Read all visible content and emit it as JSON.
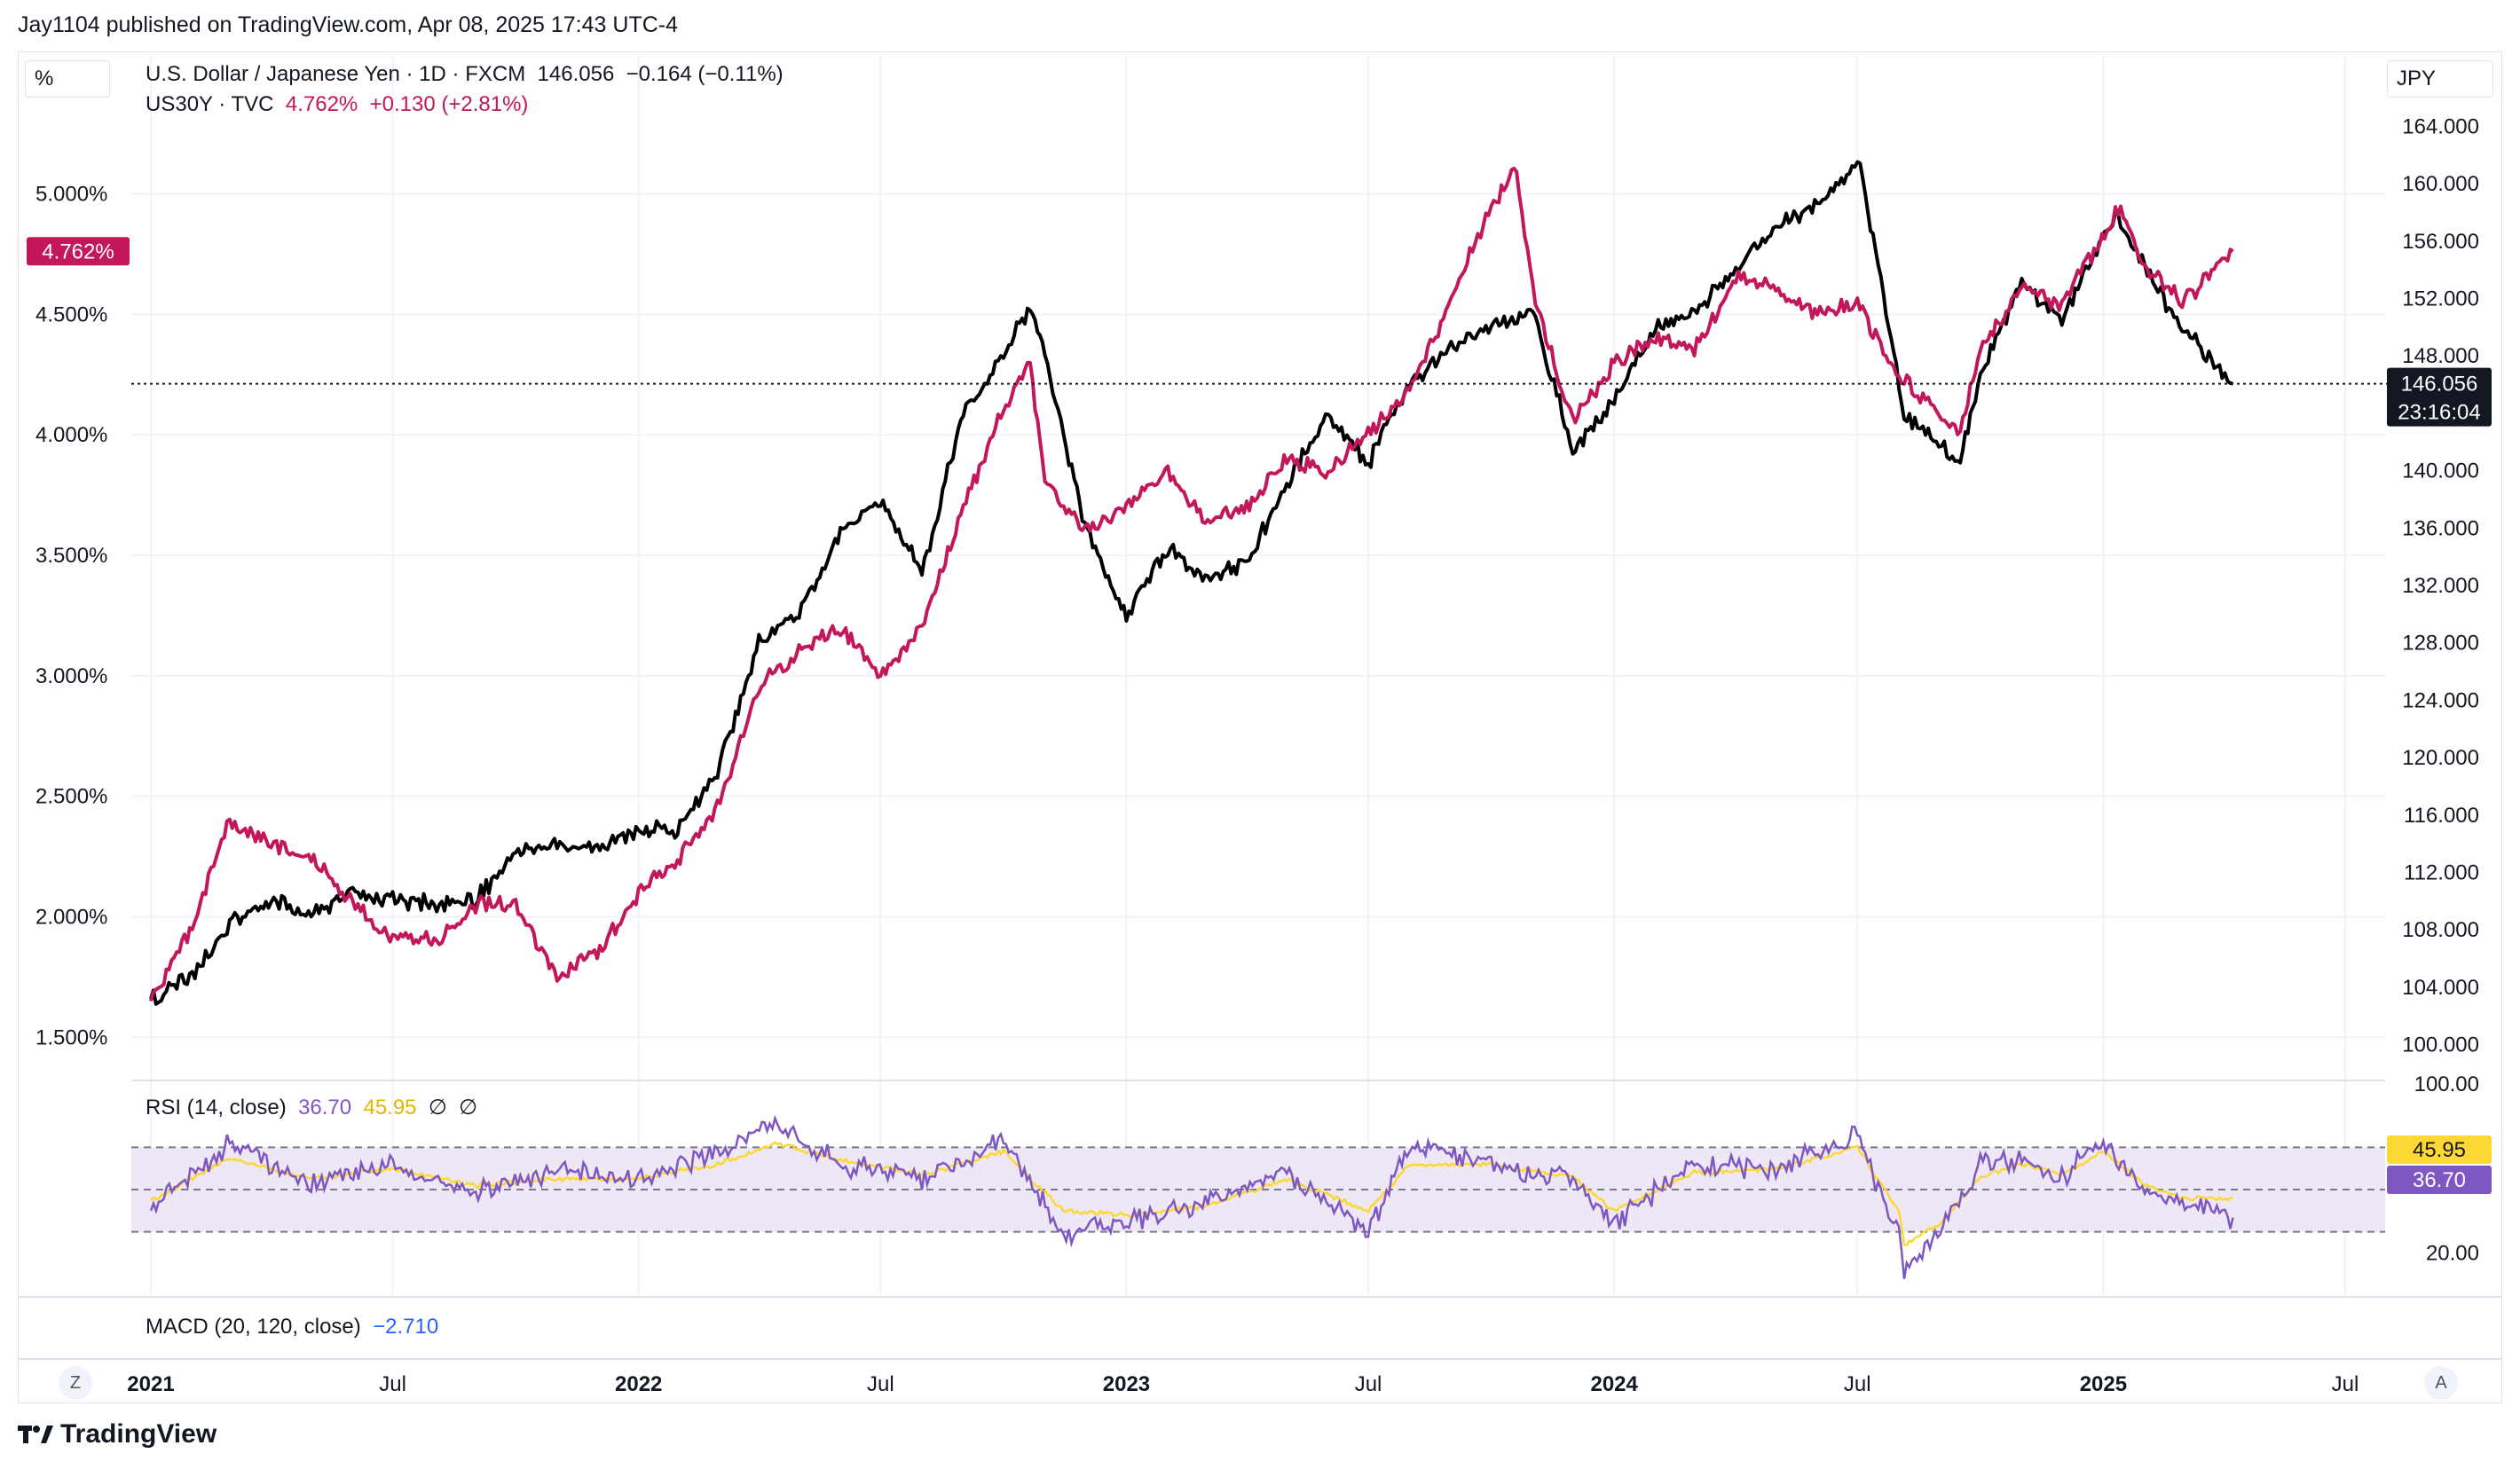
{
  "header": {
    "published": "Jay1104 published on TradingView.com, Apr 08, 2025 17:43 UTC-4"
  },
  "legend": {
    "main_symbol": "U.S. Dollar / Japanese Yen · 1D · FXCM",
    "main_value": "146.056",
    "main_change": "−0.164 (−0.11%)",
    "compare_symbol": "US30Y · TVC",
    "compare_value": "4.762%",
    "compare_change": "+0.130 (+2.81%)"
  },
  "axis_units": {
    "left": "%",
    "right": "JPY"
  },
  "price_labels": {
    "left_current": "4.762%",
    "right_current": "146.056",
    "right_countdown": "23:16:04",
    "rsi_ma": "45.95",
    "rsi_value": "36.70"
  },
  "indicators": {
    "rsi_title": "RSI (14, close)",
    "rsi_value": "36.70",
    "rsi_ma": "45.95",
    "rsi_extra1": "∅",
    "rsi_extra2": "∅",
    "macd_title": "MACD (20, 120, close)",
    "macd_value": "−2.710"
  },
  "controls": {
    "left_btn": "Z",
    "right_btn": "A"
  },
  "branding": {
    "logo_text": "TradingView"
  },
  "colors": {
    "usdjpy": "#000000",
    "us30y": "#c2185b",
    "rsi": "#7e57c2",
    "rsi_ma": "#fdd835",
    "rsi_band": "#ede7f6",
    "grid": "#f0f3fa",
    "macd_value": "#2962ff"
  },
  "chart_data": [
    {
      "type": "line",
      "x_ticks": [
        "2021",
        "Jul",
        "2022",
        "Jul",
        "2023",
        "Jul",
        "2024",
        "Jul",
        "2025",
        "Jul"
      ],
      "left_axis_ticks": [
        "5.000%",
        "4.500%",
        "4.000%",
        "3.500%",
        "3.000%",
        "2.500%",
        "2.000%",
        "1.500%"
      ],
      "right_axis_ticks": [
        "164.000",
        "160.000",
        "156.000",
        "152.000",
        "148.000",
        "140.000",
        "136.000",
        "132.000",
        "128.000",
        "124.000",
        "120.000",
        "116.000",
        "112.000",
        "108.000",
        "104.000",
        "100.000"
      ],
      "left_ylim": [
        1.35,
        5.4
      ],
      "right_ylim": [
        98.0,
        166.0
      ],
      "grid": true,
      "series": [
        {
          "name": "U.S. Dollar / Japanese Yen · 1D · FXCM",
          "axis": "right",
          "x": [
            "2021-01-01",
            "2021-02-01",
            "2021-03-01",
            "2021-04-01",
            "2021-05-01",
            "2021-06-01",
            "2021-07-01",
            "2021-08-01",
            "2021-09-01",
            "2021-10-01",
            "2021-11-01",
            "2021-12-01",
            "2022-01-01",
            "2022-02-01",
            "2022-03-01",
            "2022-04-01",
            "2022-05-01",
            "2022-06-01",
            "2022-07-01",
            "2022-08-01",
            "2022-09-01",
            "2022-10-01",
            "2022-10-21",
            "2022-11-01",
            "2022-12-01",
            "2023-01-01",
            "2023-02-01",
            "2023-03-01",
            "2023-04-01",
            "2023-05-01",
            "2023-06-01",
            "2023-07-01",
            "2023-08-01",
            "2023-09-01",
            "2023-10-01",
            "2023-11-01",
            "2023-12-01",
            "2024-01-01",
            "2024-02-01",
            "2024-03-01",
            "2024-04-01",
            "2024-05-01",
            "2024-06-01",
            "2024-07-03",
            "2024-08-05",
            "2024-09-16",
            "2024-10-01",
            "2024-11-01",
            "2024-12-01",
            "2025-01-10",
            "2025-02-01",
            "2025-03-01",
            "2025-04-08"
          ],
          "values": [
            103.2,
            104.8,
            108.5,
            110.0,
            109.0,
            110.5,
            110.2,
            109.8,
            110.0,
            113.5,
            114.0,
            113.6,
            115.0,
            115.0,
            119.0,
            128.0,
            130.0,
            135.5,
            138.0,
            133.0,
            144.0,
            148.0,
            151.5,
            148.0,
            136.0,
            130.0,
            134.5,
            132.5,
            133.5,
            139.0,
            144.0,
            140.5,
            146.0,
            148.5,
            150.0,
            151.0,
            141.5,
            145.0,
            150.0,
            151.0,
            154.0,
            157.0,
            158.5,
            161.5,
            144.0,
            140.5,
            147.0,
            153.0,
            150.5,
            158.0,
            154.0,
            150.0,
            146.056
          ]
        },
        {
          "name": "US30Y · TVC",
          "axis": "left",
          "x": [
            "2021-01-01",
            "2021-02-01",
            "2021-03-01",
            "2021-04-01",
            "2021-05-01",
            "2021-06-01",
            "2021-07-01",
            "2021-08-01",
            "2021-09-01",
            "2021-10-01",
            "2021-11-01",
            "2021-12-01",
            "2022-01-01",
            "2022-02-01",
            "2022-03-01",
            "2022-04-01",
            "2022-05-01",
            "2022-06-01",
            "2022-07-01",
            "2022-08-01",
            "2022-09-01",
            "2022-10-01",
            "2022-10-21",
            "2022-11-01",
            "2022-12-01",
            "2023-01-01",
            "2023-02-01",
            "2023-03-01",
            "2023-04-01",
            "2023-05-01",
            "2023-06-01",
            "2023-07-01",
            "2023-08-01",
            "2023-09-01",
            "2023-10-01",
            "2023-10-20",
            "2023-11-01",
            "2023-12-01",
            "2024-01-01",
            "2024-02-01",
            "2024-03-01",
            "2024-04-01",
            "2024-05-01",
            "2024-06-01",
            "2024-07-01",
            "2024-08-01",
            "2024-09-16",
            "2024-10-01",
            "2024-11-01",
            "2024-12-01",
            "2025-01-14",
            "2025-02-01",
            "2025-03-01",
            "2025-04-08"
          ],
          "values": [
            1.65,
            1.95,
            2.4,
            2.3,
            2.25,
            2.05,
            1.92,
            1.9,
            2.05,
            2.05,
            1.75,
            1.85,
            2.1,
            2.25,
            2.45,
            2.95,
            3.1,
            3.2,
            3.0,
            3.2,
            3.7,
            4.1,
            4.3,
            3.8,
            3.6,
            3.7,
            3.85,
            3.65,
            3.7,
            3.9,
            3.85,
            4.0,
            4.2,
            4.55,
            4.95,
            5.1,
            4.6,
            4.05,
            4.3,
            4.4,
            4.35,
            4.65,
            4.6,
            4.5,
            4.55,
            4.25,
            4.0,
            4.35,
            4.6,
            4.55,
            4.95,
            4.7,
            4.55,
            4.762
          ]
        }
      ]
    },
    {
      "type": "line",
      "title": "RSI (14, close)",
      "ylim": [
        0,
        100
      ],
      "levels": [
        70,
        50,
        30
      ],
      "y_ticks": [
        "100.00",
        "20.00"
      ],
      "series": [
        {
          "name": "RSI",
          "x": [
            "2021-01-01",
            "2021-03-01",
            "2021-05-01",
            "2021-07-01",
            "2021-09-01",
            "2021-11-01",
            "2022-01-01",
            "2022-03-01",
            "2022-04-15",
            "2022-06-01",
            "2022-08-01",
            "2022-10-01",
            "2022-11-15",
            "2023-01-01",
            "2023-03-01",
            "2023-05-01",
            "2023-07-01",
            "2023-08-01",
            "2023-10-01",
            "2023-12-01",
            "2024-01-01",
            "2024-03-01",
            "2024-05-01",
            "2024-07-01",
            "2024-08-01",
            "2024-08-05",
            "2024-09-01",
            "2024-10-01",
            "2024-11-01",
            "2024-12-01",
            "2025-01-01",
            "2025-02-01",
            "2025-03-01",
            "2025-04-08"
          ],
          "values": [
            40,
            72,
            52,
            62,
            48,
            58,
            55,
            68,
            80,
            62,
            55,
            74,
            28,
            35,
            44,
            58,
            30,
            70,
            62,
            55,
            35,
            62,
            60,
            76,
            28,
            10,
            32,
            62,
            64,
            55,
            74,
            48,
            45,
            36.7
          ]
        },
        {
          "name": "RSI MA",
          "x": [
            "2021-01-01",
            "2021-03-01",
            "2021-05-01",
            "2021-07-01",
            "2021-09-01",
            "2021-11-01",
            "2022-01-01",
            "2022-03-01",
            "2022-04-15",
            "2022-06-01",
            "2022-08-01",
            "2022-10-01",
            "2022-11-15",
            "2023-01-01",
            "2023-03-01",
            "2023-05-01",
            "2023-07-01",
            "2023-08-01",
            "2023-10-01",
            "2023-12-01",
            "2024-01-01",
            "2024-03-01",
            "2024-05-01",
            "2024-07-01",
            "2024-08-01",
            "2024-08-05",
            "2024-09-01",
            "2024-10-01",
            "2024-11-01",
            "2024-12-01",
            "2025-01-01",
            "2025-02-01",
            "2025-03-01",
            "2025-04-08"
          ],
          "values": [
            45,
            65,
            55,
            60,
            52,
            55,
            55,
            62,
            72,
            64,
            57,
            68,
            40,
            38,
            42,
            55,
            40,
            62,
            62,
            56,
            40,
            58,
            60,
            70,
            40,
            24,
            34,
            56,
            62,
            57,
            68,
            52,
            46,
            45.95
          ]
        }
      ]
    }
  ]
}
